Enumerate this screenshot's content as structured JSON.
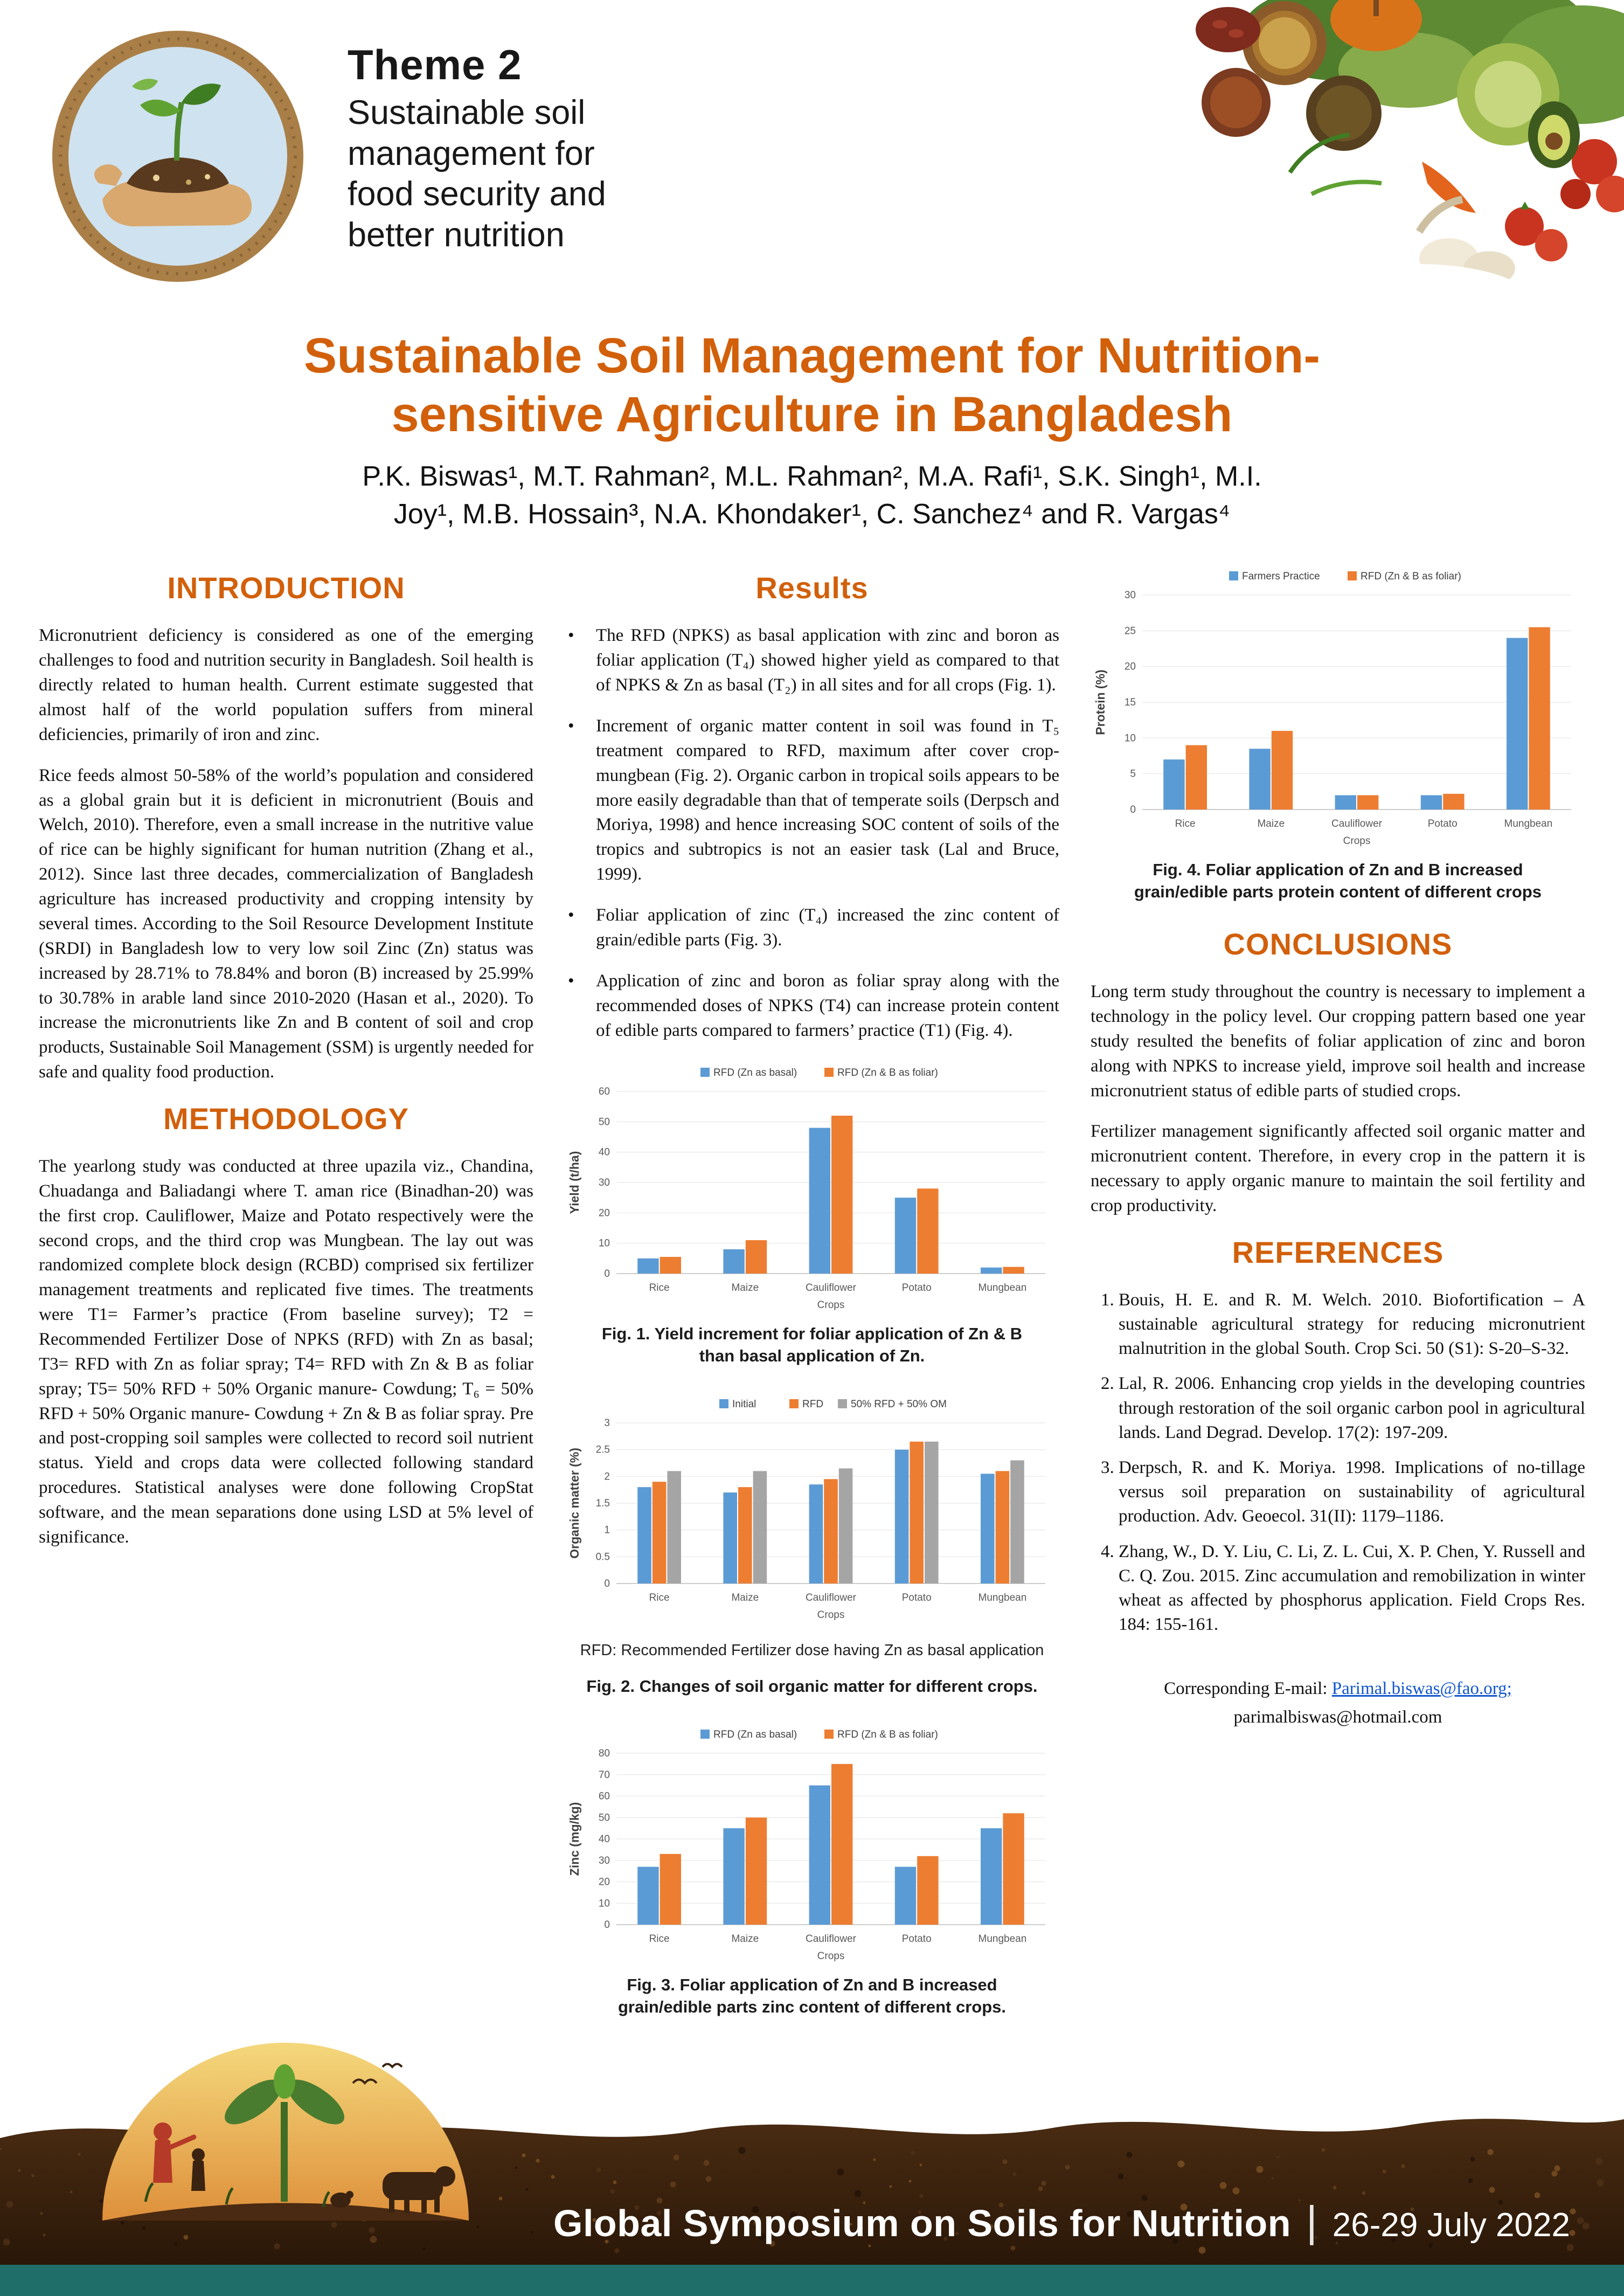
{
  "colors": {
    "accent": "#d2600b",
    "footer_teal": "#1f6e69"
  },
  "header": {
    "theme_label": "Theme 2",
    "theme_lines": [
      "Sustainable soil",
      "management for",
      "food security and",
      "better nutrition"
    ]
  },
  "title": {
    "line1": "Sustainable Soil Management for Nutrition-",
    "line2": "sensitive Agriculture in Bangladesh"
  },
  "authors": {
    "line1": "P.K. Biswas¹, M.T. Rahman², M.L. Rahman², M.A. Rafi¹, S.K. Singh¹, M.I.",
    "line2": "Joy¹, M.B. Hossain³, N.A. Khondaker¹, C. Sanchez⁴ and R. Vargas⁴"
  },
  "sections": {
    "introduction": {
      "heading": "INTRODUCTION",
      "paragraphs": [
        "Micronutrient deficiency is considered as one of the emerging challenges to food and nutrition security in Bangladesh. Soil health is directly related to human health. Current estimate suggested that almost half of the world population suffers from mineral deficiencies, primarily of iron and zinc.",
        "Rice feeds almost 50-58% of the world’s population and considered as a global grain but it is deficient in micronutrient (Bouis and Welch, 2010). Therefore, even a small increase in the nutritive value of rice can be highly significant for human nutrition (Zhang et al., 2012). Since last three decades, commercialization of Bangladesh agriculture has increased productivity and cropping intensity by several times. According to the Soil Resource Development Institute (SRDI) in Bangladesh low to very low soil Zinc (Zn) status was increased by 28.71% to 78.84% and boron (B) increased by 25.99% to 30.78% in arable land since 2010-2020 (Hasan et al., 2020). To increase the micronutrients like Zn and B content of soil and crop products, Sustainable Soil Management (SSM) is urgently needed for safe and quality food production."
      ]
    },
    "methodology": {
      "heading": "METHODOLOGY",
      "paragraphs": [
        "The yearlong study was conducted at three upazila viz., Chandina, Chuadanga and Baliadangi where T. aman rice (Binadhan-20) was the first crop. Cauliflower, Maize and Potato respectively were the second crops, and the third crop was Mungbean. The lay out was randomized complete block design (RCBD) comprised six fertilizer management treatments and replicated five times. The treatments were T1= Farmer’s practice (From baseline survey); T2 = Recommended Fertilizer Dose of NPKS (RFD) with Zn as basal; T3= RFD with Zn as foliar spray; T4= RFD with Zn & B as foliar spray; T5= 50% RFD + 50% Organic manure- Cowdung; T₆ = 50% RFD + 50% Organic manure- Cowdung + Zn & B as foliar spray. Pre and post-cropping soil samples were collected to record soil nutrient status. Yield and crops data were collected following standard procedures. Statistical analyses were done following CropStat software, and the mean separations done using LSD at 5% level of significance."
      ]
    },
    "results": {
      "heading": "Results",
      "bullets": [
        "The RFD (NPKS) as basal application with zinc and boron as foliar application (T₄) showed higher yield as compared to that of NPKS & Zn as basal (T₂) in all sites and for all crops (Fig. 1).",
        "Increment of organic matter content in soil was found in T₅ treatment compared to RFD, maximum after cover crop- mungbean (Fig. 2). Organic carbon in tropical soils appears to be more easily degradable than that of temperate soils (Derpsch and Moriya, 1998) and hence increasing SOC content of soils of the tropics and subtropics is not an easier task (Lal and Bruce, 1999).",
        "Foliar application of zinc (T₄) increased the zinc content of grain/edible parts (Fig. 3).",
        "Application of zinc and boron as foliar spray along with the recommended doses of NPKS (T4) can increase protein content of edible parts compared to farmers’ practice (T1) (Fig. 4)."
      ]
    },
    "conclusions": {
      "heading": "CONCLUSIONS",
      "paragraphs": [
        "Long term study throughout the country is necessary to implement a technology in the policy level. Our cropping pattern based one year study resulted the benefits of foliar application of zinc and boron along with NPKS to increase yield, improve soil health and increase micronutrient status of edible parts of studied crops.",
        "Fertilizer management significantly affected soil organic matter and micronutrient content. Therefore, in every crop in the pattern it is necessary to apply organic manure to maintain the soil fertility and crop productivity."
      ]
    },
    "references": {
      "heading": "REFERENCES",
      "items": [
        "Bouis, H. E. and R. M. Welch. 2010. Biofortification – A sustainable agricultural strategy for reducing micronutrient malnutrition in the global South. Crop Sci. 50 (S1): S-20–S-32.",
        "Lal, R. 2006. Enhancing crop yields in the developing countries through restoration of the soil organic carbon pool in agricultural lands. Land Degrad. Develop. 17(2): 197-209.",
        "Derpsch, R. and K. Moriya. 1998. Implications of no-tillage versus soil preparation on sustainability of agricultural production. Adv. Geoecol. 31(II): 1179–1186.",
        "Zhang, W., D. Y. Liu, C. Li, Z. L. Cui, X. P. Chen, Y. Russell and C. Q. Zou. 2015. Zinc accumulation and remobilization in winter wheat as affected by phosphorus application. Field Crops Res. 184: 155-161."
      ]
    },
    "contact": {
      "label": "Corresponding E-mail:",
      "email1": "Parimal.biswas@fao.org;",
      "email2": "parimalbiswas@hotmail.com"
    }
  },
  "figures": {
    "fig1_caption": "Fig. 1. Yield increment for foliar application of Zn & B than basal application of Zn.",
    "fig2_note": "RFD: Recommended Fertilizer dose having Zn as basal application",
    "fig2_caption": "Fig. 2. Changes of soil organic matter for different crops.",
    "fig3_caption": "Fig. 3. Foliar application of Zn and B increased grain/edible parts zinc content of different crops.",
    "fig4_caption": "Fig. 4. Foliar application of Zn and B increased grain/edible parts protein content of different crops"
  },
  "footer": {
    "symposium": "Global Symposium on Soils for Nutrition",
    "dates": "26-29 July 2022"
  },
  "chart_data": [
    {
      "type": "bar",
      "categories": [
        "Rice",
        "Maize",
        "Cauliflower",
        "Potato",
        "Mungbean"
      ],
      "series": [
        {
          "name": "RFD (Zn as basal)",
          "color": "#5b9bd5",
          "values": [
            5,
            8,
            48,
            25,
            2
          ]
        },
        {
          "name": "RFD (Zn & B as foliar)",
          "color": "#ed7d31",
          "values": [
            5.5,
            11,
            52,
            28,
            2.2
          ]
        }
      ],
      "title": "",
      "xlabel": "Crops",
      "ylabel": "Yield (t/ha)",
      "ylim": [
        0,
        60
      ],
      "ytick": 10,
      "grid": true,
      "legend_position": "top"
    },
    {
      "type": "bar",
      "categories": [
        "Rice",
        "Maize",
        "Cauliflower",
        "Potato",
        "Mungbean"
      ],
      "series": [
        {
          "name": "Initial",
          "color": "#5b9bd5",
          "values": [
            1.8,
            1.7,
            1.85,
            2.5,
            2.05
          ]
        },
        {
          "name": "RFD",
          "color": "#ed7d31",
          "values": [
            1.9,
            1.8,
            1.95,
            2.65,
            2.1
          ]
        },
        {
          "name": "50% RFD + 50% OM",
          "color": "#a5a5a5",
          "values": [
            2.1,
            2.1,
            2.15,
            2.65,
            2.3
          ]
        }
      ],
      "title": "",
      "xlabel": "Crops",
      "ylabel": "Organic matter (%)",
      "ylim": [
        0,
        3
      ],
      "ytick": 0.5,
      "grid": true,
      "legend_position": "top"
    },
    {
      "type": "bar",
      "categories": [
        "Rice",
        "Maize",
        "Cauliflower",
        "Potato",
        "Mungbean"
      ],
      "series": [
        {
          "name": "RFD (Zn as basal)",
          "color": "#5b9bd5",
          "values": [
            27,
            45,
            65,
            27,
            45
          ]
        },
        {
          "name": "RFD (Zn & B as foliar)",
          "color": "#ed7d31",
          "values": [
            33,
            50,
            75,
            32,
            52
          ]
        }
      ],
      "title": "",
      "xlabel": "Crops",
      "ylabel": "Zinc (mg/kg)",
      "ylim": [
        0,
        80
      ],
      "ytick": 10,
      "grid": true,
      "legend_position": "top"
    },
    {
      "type": "bar",
      "categories": [
        "Rice",
        "Maize",
        "Cauliflower",
        "Potato",
        "Mungbean"
      ],
      "series": [
        {
          "name": "Farmers Practice",
          "color": "#5b9bd5",
          "values": [
            7,
            8.5,
            2,
            2,
            24
          ]
        },
        {
          "name": "RFD (Zn & B as foliar)",
          "color": "#ed7d31",
          "values": [
            9,
            11,
            2,
            2.2,
            25.5
          ]
        }
      ],
      "title": "",
      "xlabel": "Crops",
      "ylabel": "Protein (%)",
      "ylim": [
        0,
        30
      ],
      "ytick": 5,
      "grid": true,
      "legend_position": "top"
    }
  ]
}
